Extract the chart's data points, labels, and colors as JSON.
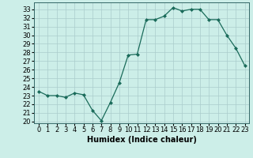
{
  "x": [
    0,
    1,
    2,
    3,
    4,
    5,
    6,
    7,
    8,
    9,
    10,
    11,
    12,
    13,
    14,
    15,
    16,
    17,
    18,
    19,
    20,
    21,
    22,
    23
  ],
  "y": [
    23.5,
    23.0,
    23.0,
    22.8,
    23.3,
    23.1,
    21.3,
    20.1,
    22.2,
    24.5,
    27.7,
    27.8,
    31.8,
    31.8,
    32.2,
    33.2,
    32.8,
    33.0,
    33.0,
    31.8,
    31.8,
    30.0,
    28.5,
    26.5
  ],
  "xlabel": "Humidex (Indice chaleur)",
  "xlim": [
    -0.5,
    23.5
  ],
  "ylim": [
    19.8,
    33.8
  ],
  "yticks": [
    20,
    21,
    22,
    23,
    24,
    25,
    26,
    27,
    28,
    29,
    30,
    31,
    32,
    33
  ],
  "xticks": [
    0,
    1,
    2,
    3,
    4,
    5,
    6,
    7,
    8,
    9,
    10,
    11,
    12,
    13,
    14,
    15,
    16,
    17,
    18,
    19,
    20,
    21,
    22,
    23
  ],
  "line_color": "#1a6b5a",
  "marker": "D",
  "marker_size": 2.0,
  "bg_color": "#cceee8",
  "grid_color": "#aacccc",
  "xlabel_fontsize": 7,
  "tick_fontsize": 6
}
